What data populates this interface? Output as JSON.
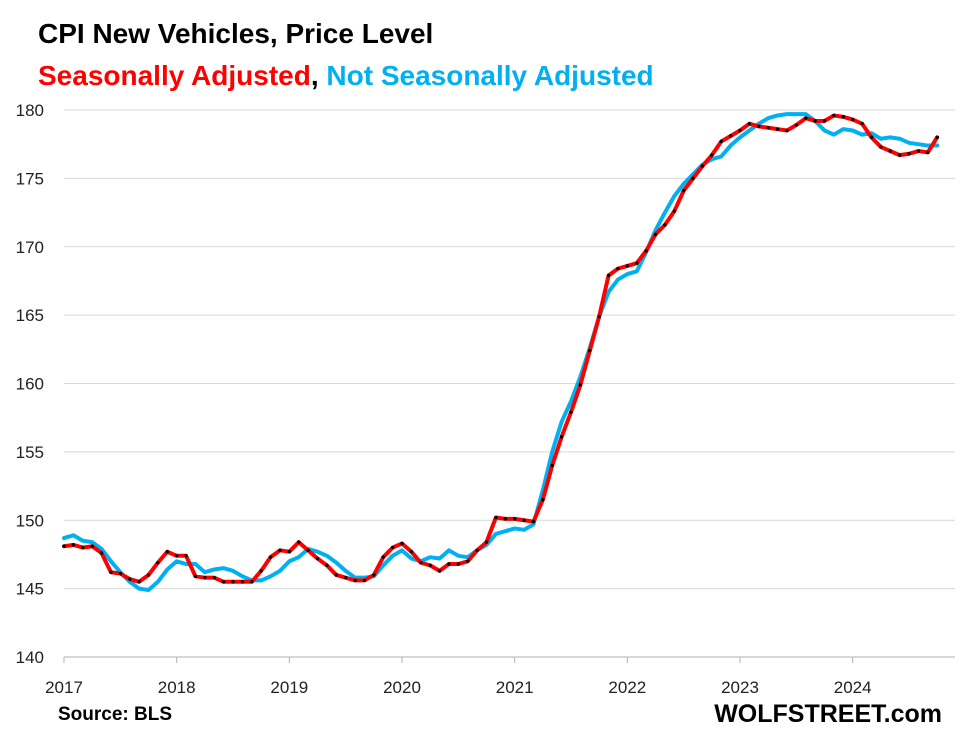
{
  "header": {
    "title": "CPI New Vehicles, Price Level",
    "subtitle_sa": "Seasonally Adjusted",
    "subtitle_sep": ", ",
    "subtitle_nsa": "Not Seasonally  Adjusted"
  },
  "footer": {
    "source": "Source: BLS",
    "brand": "WOLFSTREET.com"
  },
  "colors": {
    "sa_line": "#ff0000",
    "nsa_line": "#00b0f0",
    "dots": "#000000",
    "grid": "#d9d9d9",
    "axis": "#bfbfbf"
  },
  "chart_data": {
    "type": "line",
    "title": "CPI New Vehicles, Price Level",
    "xlabel": "",
    "ylabel": "",
    "ylim": [
      140,
      180
    ],
    "yticks": [
      140,
      145,
      150,
      155,
      160,
      165,
      170,
      175,
      180
    ],
    "xticks": [
      "2017",
      "2018",
      "2019",
      "2020",
      "2021",
      "2022",
      "2023",
      "2024"
    ],
    "x_start": "2017-01",
    "x_frequency": "monthly",
    "grid": true,
    "legend": "subtitle",
    "series": [
      {
        "name": "Seasonally Adjusted",
        "values": [
          148.1,
          148.2,
          148.0,
          148.1,
          147.6,
          146.2,
          146.1,
          145.7,
          145.5,
          146.0,
          146.9,
          147.7,
          147.4,
          147.4,
          145.9,
          145.8,
          145.8,
          145.5,
          145.5,
          145.5,
          145.5,
          146.3,
          147.3,
          147.8,
          147.7,
          148.4,
          147.8,
          147.2,
          146.7,
          146.0,
          145.8,
          145.6,
          145.6,
          146.0,
          147.3,
          148.0,
          148.3,
          147.7,
          146.9,
          146.7,
          146.3,
          146.8,
          146.8,
          147.0,
          147.8,
          148.4,
          150.2,
          150.1,
          150.1,
          150.0,
          149.9,
          151.5,
          154.0,
          156.1,
          157.9,
          159.9,
          162.4,
          164.9,
          167.9,
          168.4,
          168.6,
          168.8,
          169.7,
          170.9,
          171.6,
          172.6,
          174.1,
          175.0,
          175.9,
          176.7,
          177.7,
          178.1,
          178.5,
          179.0,
          178.8,
          178.7,
          178.6,
          178.5,
          178.9,
          179.4,
          179.2,
          179.2,
          179.6,
          179.5,
          179.3,
          179.0,
          178.0,
          177.3,
          177.0,
          176.7,
          176.8,
          177.0,
          176.9,
          178.0
        ]
      },
      {
        "name": "Not Seasonally  Adjusted",
        "values": [
          148.7,
          148.9,
          148.5,
          148.4,
          147.9,
          147.0,
          146.2,
          145.5,
          145.0,
          144.9,
          145.5,
          146.4,
          147.0,
          146.8,
          146.8,
          146.2,
          146.4,
          146.5,
          146.3,
          145.9,
          145.6,
          145.6,
          145.9,
          146.3,
          147.0,
          147.3,
          147.9,
          147.7,
          147.4,
          146.9,
          146.3,
          145.8,
          145.8,
          145.9,
          146.7,
          147.4,
          147.8,
          147.2,
          147.0,
          147.3,
          147.2,
          147.8,
          147.4,
          147.3,
          147.8,
          148.2,
          149.0,
          149.2,
          149.4,
          149.3,
          149.7,
          152.2,
          155.0,
          157.2,
          158.7,
          160.5,
          162.6,
          164.9,
          166.7,
          167.6,
          168.0,
          168.2,
          169.6,
          171.2,
          172.5,
          173.7,
          174.6,
          175.3,
          176.0,
          176.4,
          176.6,
          177.4,
          178.0,
          178.5,
          179.0,
          179.4,
          179.6,
          179.7,
          179.7,
          179.7,
          179.2,
          178.5,
          178.2,
          178.6,
          178.5,
          178.2,
          178.3,
          177.9,
          178.0,
          177.9,
          177.6,
          177.5,
          177.4,
          177.4
        ]
      }
    ]
  }
}
